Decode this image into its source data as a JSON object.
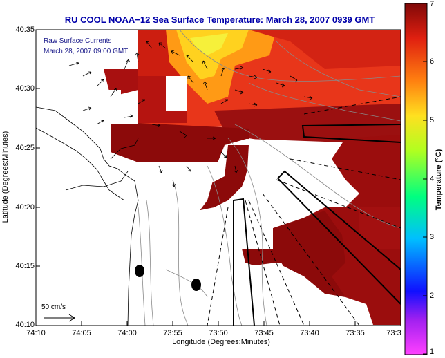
{
  "title": "RU COOL  NOAA−12  Sea Surface Temperature:  March 28, 2007 0939 GMT",
  "axes": {
    "xlabel": "Longitude (Degrees:Minutes)",
    "ylabel": "Latitude (Degrees:Minutes)",
    "xticks": [
      "74:10",
      "74:05",
      "74:00",
      "73:55",
      "73:50",
      "73:45",
      "73:40",
      "73:35",
      "73:3"
    ],
    "yticks": [
      "40:35",
      "40:30",
      "40:25",
      "40:20",
      "40:15",
      "40:10"
    ]
  },
  "overlay": {
    "raw_label": "Raw Surface Currents",
    "raw_date": "March 28, 2007 09:00 GMT",
    "scale_label": "50 cm/s"
  },
  "colorbar": {
    "label": "Temperature (°C)",
    "ticks": [
      "7",
      "6",
      "5",
      "4",
      "3",
      "2",
      "1"
    ]
  },
  "colors": {
    "title": "#0000aa",
    "land": "#ffffff",
    "sst_max": "#7a0a0a",
    "sst_mid": "#e02a10",
    "sst_warm": "#ffd21f"
  }
}
